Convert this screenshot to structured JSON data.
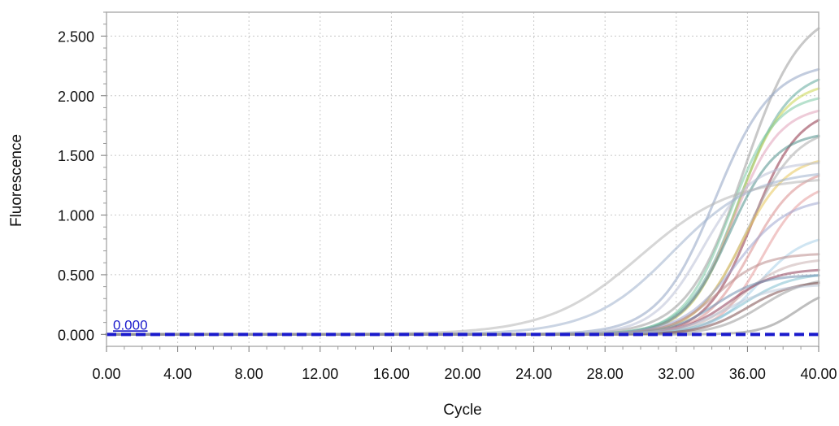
{
  "chart_data": {
    "type": "line",
    "title": "",
    "xlabel": "Cycle",
    "ylabel": "Fluorescence",
    "xlim": [
      0,
      40
    ],
    "ylim": [
      -0.1,
      2.7
    ],
    "x_ticks": [
      "0.00",
      "4.00",
      "8.00",
      "12.00",
      "16.00",
      "20.00",
      "24.00",
      "28.00",
      "32.00",
      "36.00",
      "40.00"
    ],
    "y_ticks": [
      "0.000",
      "0.500",
      "1.000",
      "1.500",
      "2.000",
      "2.500"
    ],
    "grid": true,
    "legend": "none",
    "threshold": {
      "value": 0,
      "label": "0.000",
      "color": "#1a1acc"
    },
    "curve_model": "sigmoid amplification: y = plateau / (1 + exp(-(cycle - midpoint) / slope))",
    "series": [
      {
        "color": "#9a9a9a",
        "plateau": 2.75,
        "midpoint": 35.8,
        "slope": 1.6
      },
      {
        "color": "#8fa3c2",
        "plateau": 2.28,
        "midpoint": 34.2,
        "slope": 1.6
      },
      {
        "color": "#5fa89a",
        "plateau": 2.22,
        "midpoint": 35.5,
        "slope": 1.4
      },
      {
        "color": "#c9d64f",
        "plateau": 2.12,
        "midpoint": 35.4,
        "slope": 1.3
      },
      {
        "color": "#7bc9a4",
        "plateau": 2.02,
        "midpoint": 35.0,
        "slope": 1.3
      },
      {
        "color": "#e0a0b8",
        "plateau": 1.92,
        "midpoint": 35.2,
        "slope": 1.3
      },
      {
        "color": "#8c2d43",
        "plateau": 1.9,
        "midpoint": 36.3,
        "slope": 1.3
      },
      {
        "color": "#a9a9a9",
        "plateau": 1.75,
        "midpoint": 36.0,
        "slope": 1.4
      },
      {
        "color": "#4f8f8a",
        "plateau": 1.7,
        "midpoint": 35.0,
        "slope": 1.3
      },
      {
        "color": "#e8c75a",
        "plateau": 1.5,
        "midpoint": 35.6,
        "slope": 1.3
      },
      {
        "color": "#b9c0d6",
        "plateau": 1.45,
        "midpoint": 33.5,
        "slope": 1.4
      },
      {
        "color": "#d98c8c",
        "plateau": 1.4,
        "midpoint": 36.2,
        "slope": 1.3
      },
      {
        "color": "#9fb0cc",
        "plateau": 1.38,
        "midpoint": 31.8,
        "slope": 2.3
      },
      {
        "color": "#b5b5b5",
        "plateau": 1.32,
        "midpoint": 30.0,
        "slope": 2.6
      },
      {
        "color": "#e69a9a",
        "plateau": 1.28,
        "midpoint": 36.8,
        "slope": 1.2
      },
      {
        "color": "#9fa6cf",
        "plateau": 1.15,
        "midpoint": 35.3,
        "slope": 1.5
      },
      {
        "color": "#a8cfe8",
        "plateau": 0.85,
        "midpoint": 36.6,
        "slope": 1.3
      },
      {
        "color": "#b98a8a",
        "plateau": 0.68,
        "midpoint": 34.3,
        "slope": 1.3
      },
      {
        "color": "#c9b0b0",
        "plateau": 0.64,
        "midpoint": 35.6,
        "slope": 1.3
      },
      {
        "color": "#8c3a55",
        "plateau": 0.55,
        "midpoint": 35.0,
        "slope": 1.3
      },
      {
        "color": "#7fbfd0",
        "plateau": 0.52,
        "midpoint": 35.8,
        "slope": 1.4
      },
      {
        "color": "#6f8fb0",
        "plateau": 0.5,
        "midpoint": 34.2,
        "slope": 1.3
      },
      {
        "color": "#999999",
        "plateau": 0.48,
        "midpoint": 36.8,
        "slope": 1.3
      },
      {
        "color": "#7a4b4b",
        "plateau": 0.45,
        "midpoint": 36.0,
        "slope": 1.3
      },
      {
        "color": "#bcc8d8",
        "plateau": 0.42,
        "midpoint": 34.8,
        "slope": 1.4
      },
      {
        "color": "#888888",
        "plateau": 0.4,
        "midpoint": 38.8,
        "slope": 1.0
      }
    ]
  }
}
